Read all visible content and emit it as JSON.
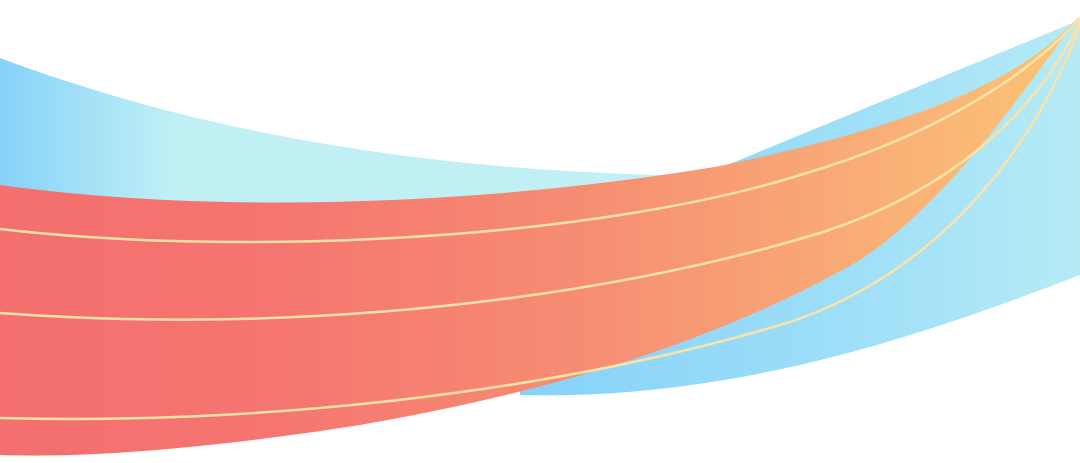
{
  "banner": {
    "background": "#ffffff",
    "blue_swoosh_colors": [
      "#86d2fa",
      "#c1f0f4",
      "#86d2fa",
      "#b6ebf6"
    ],
    "ribbon_colors": [
      "#f46f6e",
      "#f58a72",
      "#f8a274",
      "#fbc675"
    ],
    "stripe_color": "#fde2a8"
  }
}
